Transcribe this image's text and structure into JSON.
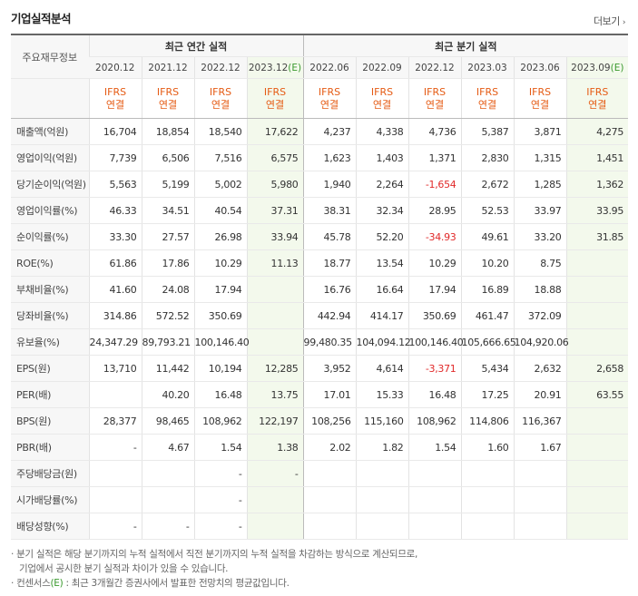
{
  "title": "기업실적분석",
  "more_label": "더보기",
  "more_arrow": "›",
  "header": {
    "row_label": "주요재무정보",
    "annual_label": "최근 연간 실적",
    "quarter_label": "최근 분기 실적",
    "annual_periods": [
      "2020.12",
      "2021.12",
      "2022.12",
      "2023.12(E)"
    ],
    "quarter_periods": [
      "2022.06",
      "2022.09",
      "2022.12",
      "2023.03",
      "2023.06",
      "2023.09(E)"
    ],
    "basis_line1": "IFRS",
    "basis_line2": "연결"
  },
  "rows": [
    {
      "label": "매출액(억원)",
      "values": [
        "16,704",
        "18,854",
        "18,540",
        "17,622",
        "4,237",
        "4,338",
        "4,736",
        "5,387",
        "3,871",
        "4,275"
      ]
    },
    {
      "label": "영업이익(억원)",
      "values": [
        "7,739",
        "6,506",
        "7,516",
        "6,575",
        "1,623",
        "1,403",
        "1,371",
        "2,830",
        "1,315",
        "1,451"
      ]
    },
    {
      "label": "당기순이익(억원)",
      "values": [
        "5,563",
        "5,199",
        "5,002",
        "5,980",
        "1,940",
        "2,264",
        "-1,654",
        "2,672",
        "1,285",
        "1,362"
      ]
    },
    {
      "label": "영업이익률(%)",
      "values": [
        "46.33",
        "34.51",
        "40.54",
        "37.31",
        "38.31",
        "32.34",
        "28.95",
        "52.53",
        "33.97",
        "33.95"
      ]
    },
    {
      "label": "순이익률(%)",
      "values": [
        "33.30",
        "27.57",
        "26.98",
        "33.94",
        "45.78",
        "52.20",
        "-34.93",
        "49.61",
        "33.20",
        "31.85"
      ]
    },
    {
      "label": "ROE(%)",
      "values": [
        "61.86",
        "17.86",
        "10.29",
        "11.13",
        "18.77",
        "13.54",
        "10.29",
        "10.20",
        "8.75",
        ""
      ]
    },
    {
      "label": "부채비율(%)",
      "values": [
        "41.60",
        "24.08",
        "17.94",
        "",
        "16.76",
        "16.64",
        "17.94",
        "16.89",
        "18.88",
        ""
      ]
    },
    {
      "label": "당좌비율(%)",
      "values": [
        "314.86",
        "572.52",
        "350.69",
        "",
        "442.94",
        "414.17",
        "350.69",
        "461.47",
        "372.09",
        ""
      ]
    },
    {
      "label": "유보율(%)",
      "values": [
        "24,347.29",
        "89,793.21",
        "100,146.40",
        "",
        "99,480.35",
        "104,094.12",
        "100,146.40",
        "105,666.65",
        "104,920.06",
        ""
      ]
    },
    {
      "label": "EPS(원)",
      "values": [
        "13,710",
        "11,442",
        "10,194",
        "12,285",
        "3,952",
        "4,614",
        "-3,371",
        "5,434",
        "2,632",
        "2,658"
      ]
    },
    {
      "label": "PER(배)",
      "values": [
        "",
        "40.20",
        "16.48",
        "13.75",
        "17.01",
        "15.33",
        "16.48",
        "17.25",
        "20.91",
        "63.55"
      ]
    },
    {
      "label": "BPS(원)",
      "values": [
        "28,377",
        "98,465",
        "108,962",
        "122,197",
        "108,256",
        "115,160",
        "108,962",
        "114,806",
        "116,367",
        ""
      ]
    },
    {
      "label": "PBR(배)",
      "values": [
        "-",
        "4.67",
        "1.54",
        "1.38",
        "2.02",
        "1.82",
        "1.54",
        "1.60",
        "1.67",
        ""
      ]
    },
    {
      "label": "주당배당금(원)",
      "values": [
        "",
        "",
        "-",
        "-",
        "",
        "",
        "",
        "",
        "",
        ""
      ]
    },
    {
      "label": "시가배당률(%)",
      "values": [
        "",
        "",
        "-",
        "",
        "",
        "",
        "",
        "",
        "",
        ""
      ]
    },
    {
      "label": "배당성향(%)",
      "values": [
        "-",
        "-",
        "-",
        "",
        "",
        "",
        "",
        "",
        "",
        ""
      ]
    }
  ],
  "footnotes": {
    "line1": "· 분기 실적은 해당 분기까지의 누적 실적에서 직전 분기까지의 누적 실적을 차감하는 방식으로 계산되므로,",
    "line2": "기업에서 공시한 분기 실적과 차이가 있을 수 있습니다.",
    "line3_prefix": "· 컨센서스",
    "line3_mark": "(E)",
    "line3_suffix": " : 최근 3개월간 증권사에서 발표한 전망치의 평균값입니다."
  },
  "colors": {
    "estimate_bg": "#f3f9ec",
    "estimate_mark": "#3b9a2f",
    "negative": "#e12a2a",
    "basis": "#e55b14"
  }
}
